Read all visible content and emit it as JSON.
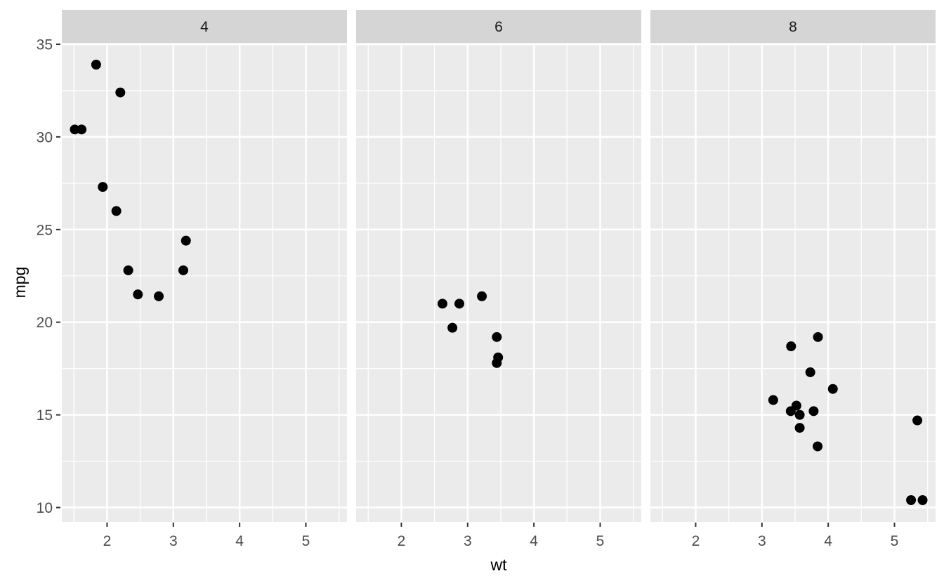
{
  "chart_data": {
    "type": "scatter",
    "title": "",
    "xlabel": "wt",
    "ylabel": "mpg",
    "grid": true,
    "legend": "none",
    "x_ticks": [
      2,
      3,
      4,
      5
    ],
    "y_ticks": [
      10,
      15,
      20,
      25,
      30,
      35
    ],
    "x_minor_gridlines": [
      1.5,
      2.5,
      3.5,
      4.5,
      5.5
    ],
    "y_minor_gridlines": [
      12.5,
      17.5,
      22.5,
      27.5,
      32.5
    ],
    "xlim": [
      1.317,
      5.62
    ],
    "ylim": [
      9.225,
      35.075
    ],
    "facets": [
      {
        "label": "4",
        "points": [
          [
            2.32,
            22.8
          ],
          [
            3.19,
            24.4
          ],
          [
            3.15,
            22.8
          ],
          [
            2.2,
            32.4
          ],
          [
            1.615,
            30.4
          ],
          [
            1.835,
            33.9
          ],
          [
            2.465,
            21.5
          ],
          [
            1.935,
            27.3
          ],
          [
            2.14,
            26.0
          ],
          [
            1.513,
            30.4
          ],
          [
            2.78,
            21.4
          ]
        ]
      },
      {
        "label": "6",
        "points": [
          [
            2.62,
            21.0
          ],
          [
            2.875,
            21.0
          ],
          [
            3.215,
            21.4
          ],
          [
            3.46,
            18.1
          ],
          [
            3.44,
            19.2
          ],
          [
            3.44,
            17.8
          ],
          [
            2.77,
            19.7
          ]
        ]
      },
      {
        "label": "8",
        "points": [
          [
            3.44,
            18.7
          ],
          [
            3.57,
            14.3
          ],
          [
            4.07,
            16.4
          ],
          [
            3.73,
            17.3
          ],
          [
            3.78,
            15.2
          ],
          [
            5.25,
            10.4
          ],
          [
            5.424,
            10.4
          ],
          [
            5.345,
            14.7
          ],
          [
            3.52,
            15.5
          ],
          [
            3.435,
            15.2
          ],
          [
            3.84,
            13.3
          ],
          [
            3.845,
            19.2
          ],
          [
            3.17,
            15.8
          ],
          [
            3.57,
            15.0
          ]
        ]
      }
    ],
    "style": {
      "background": "#FFFFFF",
      "panel_bg": "#EBEBEB",
      "strip_bg": "#D5D5D5",
      "gridline_color": "#FFFFFF",
      "point_color": "#000000",
      "tick_mark_color": "#333333",
      "tick_label_color": "#4D4D4D",
      "strip_text_color": "#1A1A1A",
      "axis_title_color": "#000000"
    }
  }
}
